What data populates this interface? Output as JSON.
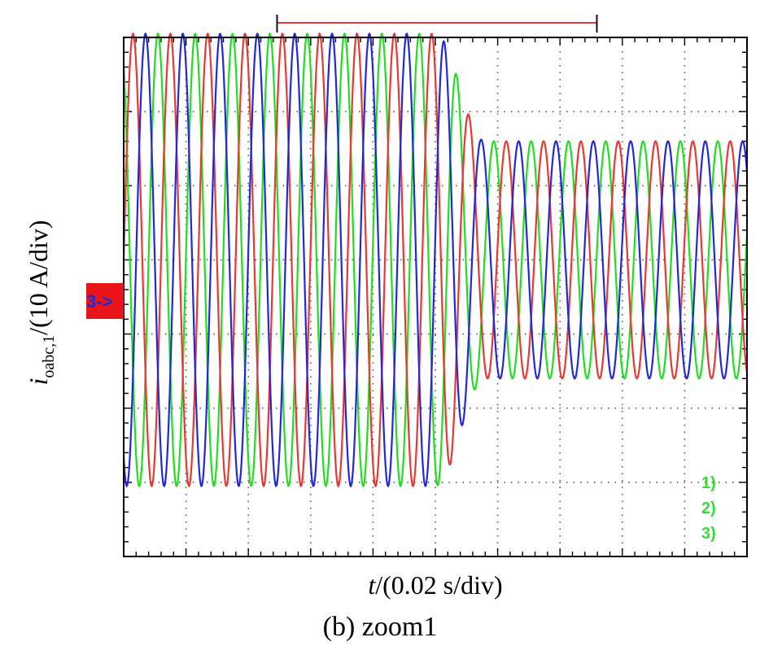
{
  "chart_data": {
    "type": "line",
    "xlabel_italic": "t",
    "xlabel_rest": "/(0.02 s/div)",
    "ylabel_main": "i",
    "ylabel_sub": "oabc,1",
    "ylabel_rest": "/(10 A/div)",
    "ground_marker": "3->",
    "channel_labels": [
      "1)",
      "2)",
      "3)"
    ],
    "x_divisions": 10,
    "y_divisions": 7,
    "xlim": [
      0,
      10
    ],
    "ylim": [
      -4,
      3
    ],
    "grid": true,
    "cursor_bracket": [
      2.5,
      7.5
    ],
    "signal": {
      "frequency_cycles_per_div": 1.67,
      "amplitude_before": 3.05,
      "transition_start": 5.0,
      "transition_end": 5.8,
      "amplitude_after": 1.6,
      "phase_offsets_deg": [
        0,
        120,
        240
      ]
    },
    "series_colors": [
      "#e53935",
      "#2229d4",
      "#22dd22"
    ],
    "channel_label_color": "#33dd33",
    "marker_color": "#e8141a",
    "marker_text_color": "#1f2bd6"
  },
  "caption": "(b) zoom1"
}
